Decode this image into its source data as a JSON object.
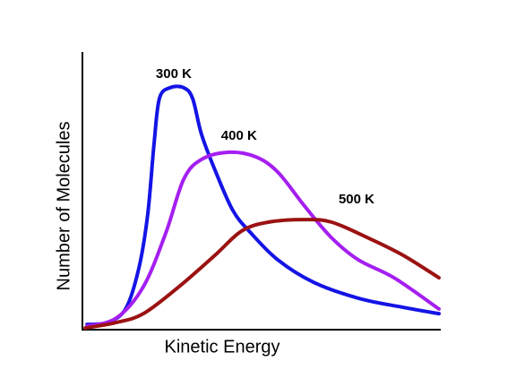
{
  "chart_data": {
    "type": "line",
    "x_label": "Kinetic Energy",
    "y_label": "Number of Molecules",
    "xlim": [
      0,
      100
    ],
    "ylim": [
      0,
      100
    ],
    "series": [
      {
        "name": "300 K",
        "color": "#1414e6",
        "x": [
          1.3,
          7.0,
          12.1,
          15.8,
          18.3,
          20.1,
          21.6,
          24.6,
          28.4,
          30.9,
          33.4,
          37.2,
          42.2,
          47.2,
          54.8,
          64.8,
          77.4,
          89.9,
          100
        ],
        "values": [
          1.9,
          2.6,
          7.5,
          22.1,
          41.6,
          67.5,
          83.8,
          87.7,
          87.7,
          83.8,
          70.8,
          57.8,
          43.2,
          35.1,
          25.3,
          17.2,
          11.4,
          8.1,
          5.8
        ]
      },
      {
        "name": "400 K",
        "color": "#a51ff0",
        "x": [
          1.3,
          9.5,
          17.1,
          23.4,
          28.4,
          33.4,
          40.9,
          48.5,
          54.8,
          62.3,
          69.8,
          77.4,
          87.4,
          100
        ],
        "values": [
          1.3,
          4.2,
          15.6,
          35.1,
          54.5,
          61.7,
          64.3,
          62.7,
          57.1,
          44.8,
          33.4,
          25.3,
          18.8,
          7.5
        ]
      },
      {
        "name": "500 K",
        "color": "#9b1212",
        "x": [
          0.8,
          9.5,
          17.1,
          27.1,
          37.2,
          44.7,
          52.3,
          62.3,
          69.8,
          79.9,
          89.9,
          100
        ],
        "values": [
          0.6,
          2.6,
          5.8,
          15.6,
          27.0,
          35.8,
          39.0,
          39.9,
          39.0,
          33.4,
          27.0,
          18.8
        ]
      }
    ]
  }
}
